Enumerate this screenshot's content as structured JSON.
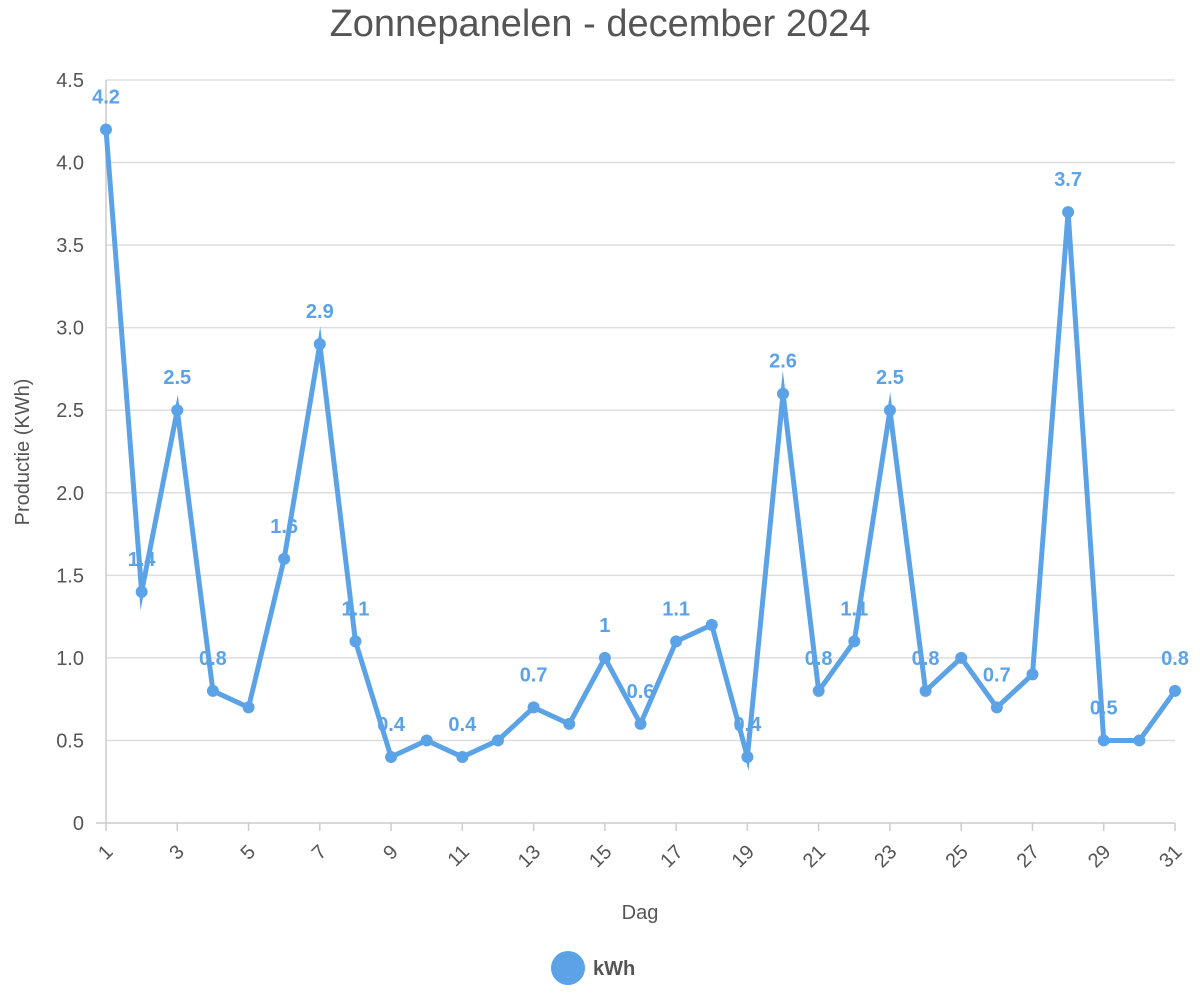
{
  "chart_data": {
    "type": "line",
    "title": "Zonnepanelen - december 2024",
    "xlabel": "Dag",
    "ylabel": "Productie (KWh)",
    "x": [
      1,
      2,
      3,
      4,
      5,
      6,
      7,
      8,
      9,
      10,
      11,
      12,
      13,
      14,
      15,
      16,
      17,
      18,
      19,
      20,
      21,
      22,
      23,
      24,
      25,
      26,
      27,
      28,
      29,
      30,
      31
    ],
    "x_tick_labels": [
      "1",
      "3",
      "5",
      "7",
      "9",
      "11",
      "13",
      "15",
      "17",
      "19",
      "21",
      "23",
      "25",
      "27",
      "29",
      "31"
    ],
    "y_tick_labels": [
      "0",
      "0.5",
      "1.0",
      "1.5",
      "2.0",
      "2.5",
      "3.0",
      "3.5",
      "4.0",
      "4.5"
    ],
    "ylim": [
      0,
      4.5
    ],
    "grid": true,
    "legend_position": "bottom",
    "series": [
      {
        "name": "kWh",
        "color": "#5ba3e6",
        "values": [
          4.2,
          1.4,
          2.5,
          0.8,
          0.7,
          1.6,
          2.9,
          1.1,
          0.4,
          0.5,
          0.4,
          0.5,
          0.7,
          0.6,
          1.0,
          0.6,
          1.1,
          1.2,
          0.4,
          2.6,
          0.8,
          1.1,
          2.5,
          0.8,
          1.0,
          0.7,
          0.9,
          3.7,
          0.5,
          0.5,
          0.8
        ]
      }
    ],
    "data_labels": [
      {
        "index": 0,
        "text": "4.2",
        "pos": "above"
      },
      {
        "index": 1,
        "text": "1.4",
        "pos": "above"
      },
      {
        "index": 2,
        "text": "2.5",
        "pos": "above"
      },
      {
        "index": 3,
        "text": "0.8",
        "pos": "above"
      },
      {
        "index": 5,
        "text": "1.6",
        "pos": "above"
      },
      {
        "index": 6,
        "text": "2.9",
        "pos": "above"
      },
      {
        "index": 7,
        "text": "1.1",
        "pos": "above"
      },
      {
        "index": 8,
        "text": "0.4",
        "pos": "above"
      },
      {
        "index": 10,
        "text": "0.4",
        "pos": "above"
      },
      {
        "index": 12,
        "text": "0.7",
        "pos": "above"
      },
      {
        "index": 14,
        "text": "1",
        "pos": "above"
      },
      {
        "index": 15,
        "text": "0.6",
        "pos": "above"
      },
      {
        "index": 16,
        "text": "1.1",
        "pos": "above"
      },
      {
        "index": 18,
        "text": "0.4",
        "pos": "above"
      },
      {
        "index": 19,
        "text": "2.6",
        "pos": "above"
      },
      {
        "index": 20,
        "text": "0.8",
        "pos": "above"
      },
      {
        "index": 21,
        "text": "1.1",
        "pos": "above"
      },
      {
        "index": 22,
        "text": "2.5",
        "pos": "above"
      },
      {
        "index": 23,
        "text": "0.8",
        "pos": "above"
      },
      {
        "index": 25,
        "text": "0.7",
        "pos": "above"
      },
      {
        "index": 27,
        "text": "3.7",
        "pos": "above"
      },
      {
        "index": 28,
        "text": "0.5",
        "pos": "above"
      },
      {
        "index": 30,
        "text": "0.8",
        "pos": "above"
      }
    ]
  }
}
